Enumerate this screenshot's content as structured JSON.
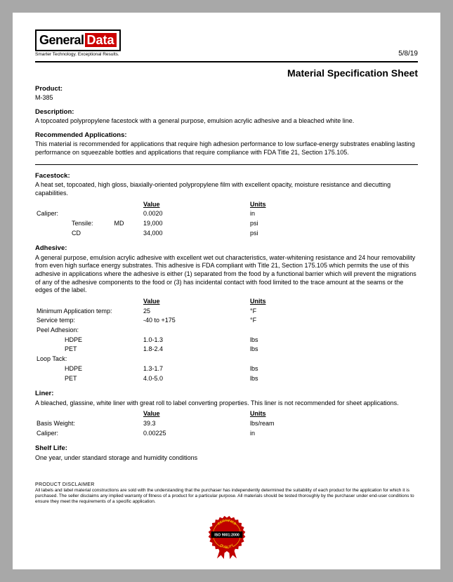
{
  "logo": {
    "part1": "General",
    "part2": "Data",
    "tagline": "Smarter Technology. Exceptional Results."
  },
  "date": "5/8/19",
  "title": "Material Specification Sheet",
  "product": {
    "label": "Product:",
    "value": "M-385"
  },
  "description": {
    "label": "Description:",
    "text": "A topcoated polypropylene facestock with a general purpose, emulsion acrylic adhesive and a bleached white line."
  },
  "recommended": {
    "label": "Recommended Applications:",
    "text": "This material is recommended for applications that require high adhesion performance to low surface-energy substrates enabling lasting performance on squeezable bottles and applications that require compliance with FDA Title 21, Section 175.105."
  },
  "facestock": {
    "label": "Facestock:",
    "text": "A heat set, topcoated, high gloss, biaxially-oriented polypropylene film with excellent opacity, moisture resistance and diecutting capabilities.",
    "headers": {
      "value": "Value",
      "units": "Units"
    },
    "rows": [
      {
        "label": "Caliper:",
        "sub": "",
        "value": "0.0020",
        "units": "in"
      },
      {
        "label": "Tensile:",
        "sub": "MD",
        "value": "19,000",
        "units": "psi"
      },
      {
        "label": "",
        "sub": "CD",
        "value": "34,000",
        "units": "psi"
      }
    ]
  },
  "adhesive": {
    "label": "Adhesive:",
    "text": "A general purpose, emulsion acrylic adhesive with excellent wet out characteristics, water-whitening resistance and 24 hour removability from even high surface energy substrates. This adhesive is FDA compliant with Title 21, Section 175.105 which permits the use of this adhesive in applications where the adhesive is either (1) separated from the food by a functional barrier which will prevent the migrations of any of the adhesive components to the food or (3) has incidental contact with food limited to the trace amount at the seams or the edges of the label.",
    "headers": {
      "value": "Value",
      "units": "Units"
    },
    "rows": [
      {
        "label": "Minimum Application temp:",
        "sub": "",
        "value": "25",
        "units": "°F"
      },
      {
        "label": "Service temp:",
        "sub": "",
        "value": "-40 to +175",
        "units": "°F"
      },
      {
        "label": "Peel Adhesion:",
        "sub": "",
        "value": "",
        "units": ""
      },
      {
        "label": "",
        "sub": "HDPE",
        "value": "1.0-1.3",
        "units": "lbs"
      },
      {
        "label": "",
        "sub": "PET",
        "value": "1.8-2.4",
        "units": "lbs"
      },
      {
        "label": "Loop Tack:",
        "sub": "",
        "value": "",
        "units": ""
      },
      {
        "label": "",
        "sub": "HDPE",
        "value": "1.3-1.7",
        "units": "lbs"
      },
      {
        "label": "",
        "sub": "PET",
        "value": "4.0-5.0",
        "units": "lbs"
      }
    ]
  },
  "liner": {
    "label": "Liner:",
    "text": "A bleached, glassine, white liner with great roll to label converting properties. This liner is not recommended for sheet applications.",
    "headers": {
      "value": "Value",
      "units": "Units"
    },
    "rows": [
      {
        "label": "Basis Weight:",
        "sub": "",
        "value": "39.3",
        "units": "lbs/ream"
      },
      {
        "label": "Caliper:",
        "sub": "",
        "value": "0.00225",
        "units": "in"
      }
    ]
  },
  "shelf": {
    "label": "Shelf Life:",
    "text": "One year, under standard storage and humidity conditions"
  },
  "disclaimer": {
    "title": "PRODUCT DISCLAIMER",
    "text": "All labels and label material constructions are sold with the understanding that the purchaser has independently determined the suitability of each product for the application for which it is purchased. The seller disclaims any implied warranty of fitness of a product for a particular purpose. All materials should be tested thoroughly by the purchaser under end-user conditions to ensure they meet the requirements of a specific application."
  },
  "cert": {
    "top": "CERTIFIED",
    "mid": "ISO 9001:2000",
    "bot": "QUALITY",
    "ribbon_color": "#c00000",
    "band_color": "#000000",
    "text_color": "#f5c400"
  }
}
